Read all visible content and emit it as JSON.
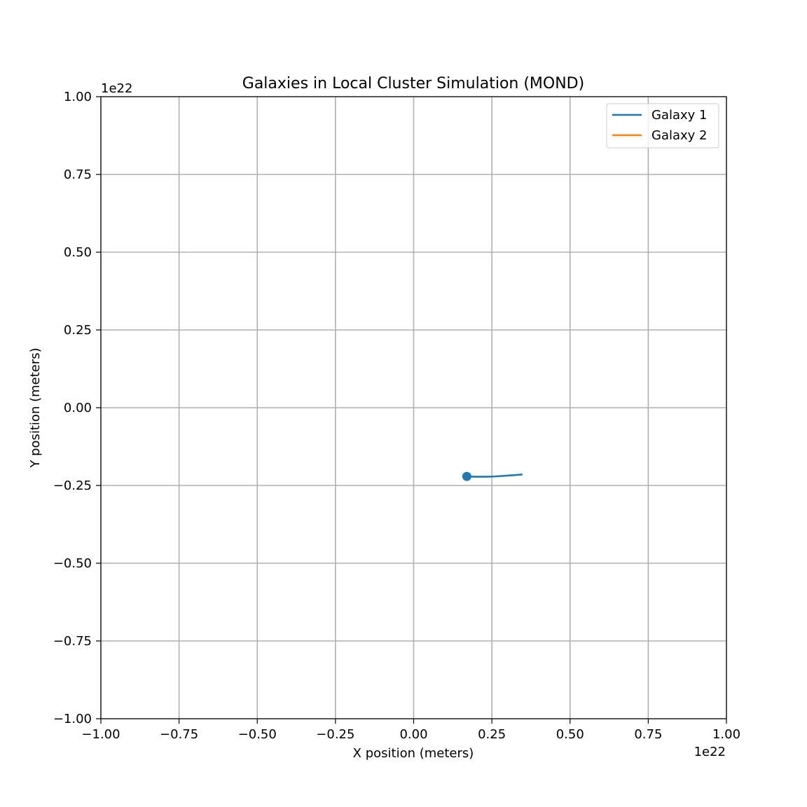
{
  "chart_data": {
    "type": "line",
    "title": "Galaxies in Local Cluster Simulation (MOND)",
    "xlabel": "X position (meters)",
    "ylabel": "Y position (meters)",
    "x_offset_text": "1e22",
    "y_offset_text": "1e22",
    "xlim": [
      -1.0,
      1.0
    ],
    "ylim": [
      -1.0,
      1.0
    ],
    "xticks": [
      -1.0,
      -0.75,
      -0.5,
      -0.25,
      0.0,
      0.25,
      0.5,
      0.75,
      1.0
    ],
    "yticks": [
      -1.0,
      -0.75,
      -0.5,
      -0.25,
      0.0,
      0.25,
      0.5,
      0.75,
      1.0
    ],
    "xtick_labels": [
      "−1.00",
      "−0.75",
      "−0.50",
      "−0.25",
      "0.00",
      "0.25",
      "0.50",
      "0.75",
      "1.00"
    ],
    "ytick_labels": [
      "−1.00",
      "−0.75",
      "−0.50",
      "−0.25",
      "0.00",
      "0.25",
      "0.50",
      "0.75",
      "1.00"
    ],
    "grid": true,
    "legend_position": "top-right",
    "series": [
      {
        "name": "Galaxy 1",
        "color": "#1f77b4",
        "x": [
          0.17,
          0.2,
          0.23,
          0.26,
          0.29,
          0.32,
          0.345
        ],
        "y": [
          -0.221,
          -0.222,
          -0.222,
          -0.221,
          -0.219,
          -0.217,
          -0.215
        ],
        "marker": {
          "x": 0.17,
          "y": -0.221
        }
      },
      {
        "name": "Galaxy 2",
        "color": "#ff7f0e",
        "x": [],
        "y": []
      }
    ]
  }
}
